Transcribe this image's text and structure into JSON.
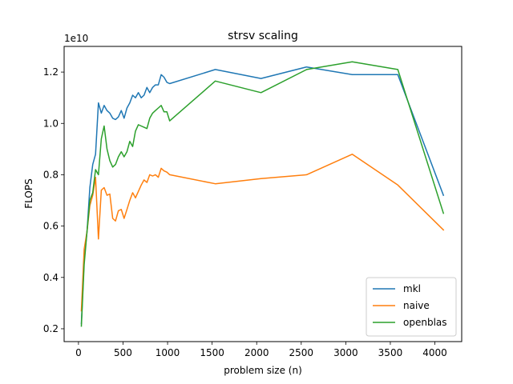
{
  "chart_data": {
    "type": "line",
    "title": "strsv scaling",
    "xlabel": "problem size (n)",
    "ylabel": "FLOPS",
    "offset_text": "1e10",
    "scale": 10000000000,
    "xlim": [
      -161,
      4301
    ],
    "ylim": [
      0.15,
      1.3
    ],
    "xticks": [
      0,
      500,
      1000,
      1500,
      2000,
      2500,
      3000,
      3500,
      4000
    ],
    "yticks": [
      0.2,
      0.4,
      0.6,
      0.8,
      1.0,
      1.2
    ],
    "ytick_labels": [
      "0.2",
      "0.4",
      "0.6",
      "0.8",
      "1.0",
      "1.2"
    ],
    "grid": false,
    "legend_position": "lower-right",
    "series": [
      {
        "name": "mkl",
        "color": "#1f77b4",
        "x": [
          32,
          64,
          96,
          128,
          160,
          192,
          224,
          256,
          288,
          320,
          352,
          384,
          416,
          448,
          480,
          512,
          544,
          576,
          608,
          640,
          672,
          704,
          736,
          768,
          800,
          832,
          864,
          896,
          928,
          960,
          992,
          1024,
          1536,
          2048,
          2560,
          3072,
          3584,
          4096
        ],
        "y": [
          0.22,
          0.47,
          0.58,
          0.75,
          0.84,
          0.88,
          1.08,
          1.04,
          1.07,
          1.05,
          1.04,
          1.02,
          1.015,
          1.025,
          1.05,
          1.02,
          1.06,
          1.08,
          1.11,
          1.1,
          1.12,
          1.1,
          1.11,
          1.14,
          1.12,
          1.14,
          1.15,
          1.15,
          1.19,
          1.18,
          1.16,
          1.155,
          1.21,
          1.175,
          1.22,
          1.19,
          1.19,
          0.72
        ]
      },
      {
        "name": "naive",
        "color": "#ff7f0e",
        "x": [
          32,
          64,
          96,
          128,
          160,
          192,
          224,
          256,
          288,
          320,
          352,
          384,
          416,
          448,
          480,
          512,
          544,
          576,
          608,
          640,
          672,
          704,
          736,
          768,
          800,
          832,
          864,
          896,
          928,
          960,
          992,
          1024,
          1536,
          2048,
          2560,
          3072,
          3584,
          4096
        ],
        "y": [
          0.27,
          0.51,
          0.58,
          0.68,
          0.72,
          0.79,
          0.55,
          0.74,
          0.75,
          0.72,
          0.725,
          0.63,
          0.62,
          0.66,
          0.665,
          0.63,
          0.665,
          0.7,
          0.73,
          0.71,
          0.735,
          0.76,
          0.78,
          0.77,
          0.8,
          0.795,
          0.8,
          0.79,
          0.825,
          0.815,
          0.81,
          0.8,
          0.765,
          0.785,
          0.8,
          0.88,
          0.76,
          0.585
        ]
      },
      {
        "name": "openblas",
        "color": "#2ca02c",
        "x": [
          32,
          64,
          96,
          128,
          160,
          192,
          224,
          256,
          288,
          320,
          352,
          384,
          416,
          448,
          480,
          512,
          544,
          576,
          608,
          640,
          672,
          704,
          736,
          768,
          800,
          832,
          864,
          896,
          928,
          960,
          992,
          1024,
          1536,
          2048,
          2560,
          3072,
          3584,
          4096
        ],
        "y": [
          0.21,
          0.45,
          0.58,
          0.7,
          0.73,
          0.82,
          0.8,
          0.94,
          0.99,
          0.9,
          0.855,
          0.83,
          0.84,
          0.87,
          0.89,
          0.87,
          0.89,
          0.93,
          0.91,
          0.97,
          0.995,
          0.99,
          0.985,
          0.98,
          1.02,
          1.04,
          1.05,
          1.06,
          1.07,
          1.045,
          1.045,
          1.01,
          1.165,
          1.12,
          1.21,
          1.24,
          1.21,
          0.65
        ]
      }
    ]
  }
}
